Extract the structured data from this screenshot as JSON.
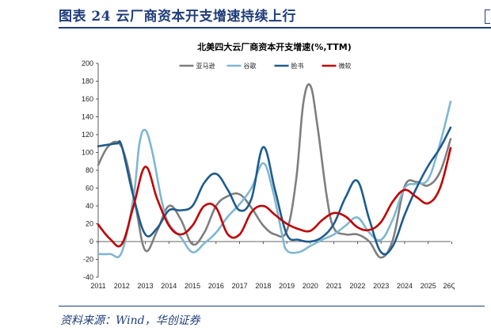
{
  "figure": {
    "title": "图表 24 云厂商资本开支增速持续上行",
    "source": "资料来源：Wind，华创证券"
  },
  "chart_data": {
    "type": "line",
    "title": "北美四大云厂商资本开支增速(%,TTM)",
    "categories": [
      "2011",
      "2012",
      "2013",
      "2014",
      "2015",
      "2016",
      "2017",
      "2018",
      "2019",
      "2020",
      "2021",
      "2022",
      "2023",
      "2024",
      "2025",
      "26Q2"
    ],
    "ylim": [
      -40,
      200
    ],
    "yticks": [
      -40,
      -20,
      0,
      20,
      40,
      60,
      80,
      100,
      120,
      140,
      160,
      180,
      200
    ],
    "grid": false,
    "legend_position": "top",
    "series": [
      {
        "name": "亚马逊",
        "color": "#7f7f7f",
        "x": [
          2011,
          2011.4,
          2011.85,
          2012.2,
          2012.6,
          2013,
          2013.5,
          2014,
          2014.5,
          2015,
          2015.5,
          2016,
          2016.5,
          2017,
          2017.5,
          2018,
          2018.5,
          2019,
          2019.4,
          2019.7,
          2020,
          2020.3,
          2020.7,
          2021,
          2021.5,
          2022,
          2022.5,
          2023,
          2023.5,
          2024,
          2024.5,
          2025,
          2025.5,
          2025.95
        ],
        "y": [
          86,
          106,
          111,
          90,
          38,
          -10,
          12,
          40,
          25,
          -3,
          10,
          40,
          51,
          53,
          38,
          18,
          8,
          12,
          70,
          155,
          175,
          130,
          50,
          15,
          8,
          8,
          0,
          -18,
          2,
          62,
          67,
          63,
          78,
          115
        ]
      },
      {
        "name": "谷歌",
        "color": "#7fb7d1",
        "x": [
          2011,
          2011.5,
          2012,
          2012.5,
          2012.75,
          2013,
          2013.3,
          2013.7,
          2014,
          2014.5,
          2015,
          2015.5,
          2016,
          2016.5,
          2017,
          2017.5,
          2018,
          2018.4,
          2018.8,
          2019,
          2019.5,
          2020,
          2020.5,
          2021,
          2021.5,
          2022,
          2022.5,
          2023,
          2023.5,
          2024,
          2024.5,
          2025,
          2025.5,
          2025.95
        ],
        "y": [
          -14,
          -14,
          -12,
          50,
          110,
          125,
          100,
          45,
          20,
          5,
          -12,
          -2,
          10,
          28,
          42,
          60,
          88,
          58,
          8,
          -10,
          -12,
          -5,
          2,
          8,
          18,
          27,
          10,
          2,
          25,
          60,
          65,
          70,
          110,
          157
        ]
      },
      {
        "name": "脸书",
        "color": "#1f5b8c",
        "x": [
          2011,
          2011.5,
          2011.8,
          2012,
          2012.5,
          2013,
          2013.5,
          2014,
          2014.5,
          2015,
          2015.5,
          2016,
          2016.5,
          2017,
          2017.5,
          2018,
          2018.5,
          2019,
          2019.5,
          2020,
          2020.5,
          2021,
          2021.5,
          2022,
          2022.5,
          2023,
          2023.5,
          2024,
          2024.5,
          2025,
          2025.5,
          2025.95
        ],
        "y": [
          107,
          109,
          110,
          107,
          50,
          8,
          15,
          35,
          35,
          40,
          66,
          76,
          58,
          35,
          48,
          106,
          58,
          8,
          2,
          0,
          5,
          20,
          50,
          68,
          25,
          -12,
          -5,
          30,
          60,
          85,
          105,
          128
        ]
      },
      {
        "name": "微软",
        "color": "#c00000",
        "x": [
          2011,
          2011.5,
          2012,
          2012.5,
          2013,
          2013.5,
          2014,
          2014.5,
          2015,
          2015.5,
          2016,
          2016.5,
          2017,
          2017.5,
          2018,
          2018.5,
          2019,
          2019.5,
          2020,
          2020.5,
          2021,
          2021.5,
          2022,
          2022.5,
          2023,
          2023.5,
          2024,
          2024.5,
          2025,
          2025.5,
          2025.95
        ],
        "y": [
          19,
          3,
          -3,
          40,
          84,
          48,
          18,
          8,
          18,
          40,
          38,
          8,
          8,
          33,
          40,
          30,
          20,
          14,
          12,
          24,
          32,
          28,
          16,
          13,
          22,
          45,
          58,
          50,
          43,
          60,
          105
        ]
      }
    ]
  }
}
